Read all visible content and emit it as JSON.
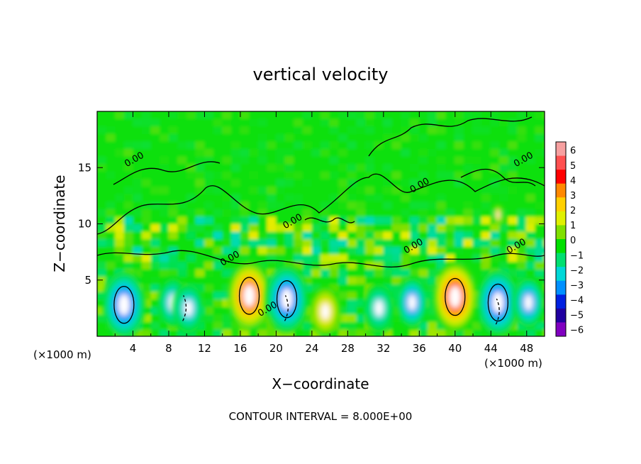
{
  "chart_data": {
    "type": "heatmap",
    "title": "vertical velocity",
    "xlabel": "X−coordinate",
    "ylabel": "Z−coordinate",
    "x_unit_left": "(×1000 m)",
    "x_unit_right": "(×1000 m)",
    "footer": "CONTOUR INTERVAL = 8.000E+00",
    "xlim": [
      0,
      50
    ],
    "ylim": [
      0,
      20
    ],
    "x_ticks": [
      "4",
      "8",
      "12",
      "16",
      "20",
      "24",
      "28",
      "32",
      "36",
      "40",
      "44",
      "48"
    ],
    "x_tick_values": [
      4,
      8,
      12,
      16,
      20,
      24,
      28,
      32,
      36,
      40,
      44,
      48
    ],
    "y_ticks": [
      "5",
      "10",
      "15"
    ],
    "y_tick_values": [
      5,
      10,
      15
    ],
    "colorbar": {
      "labels": [
        "6",
        "5",
        "4",
        "3",
        "2",
        "1",
        "0",
        "−1",
        "−2",
        "−3",
        "−4",
        "−5",
        "−6"
      ],
      "colors": [
        "#f7a0a0",
        "#ff5050",
        "#ff0000",
        "#ff8800",
        "#ffd000",
        "#e0f000",
        "#80e000",
        "#00e000",
        "#00e070",
        "#00d8d8",
        "#0090ff",
        "#0020e0",
        "#2000a0",
        "#8000c0"
      ]
    },
    "contour_labels": [
      {
        "text": "0.00",
        "x": 4.3,
        "z": 15.5
      },
      {
        "text": "0.00",
        "x": 15.0,
        "z": 6.7
      },
      {
        "text": "0.00",
        "x": 19.2,
        "z": 2.2
      },
      {
        "text": "0.00",
        "x": 22.0,
        "z": 10.0
      },
      {
        "text": "0.00",
        "x": 35.5,
        "z": 7.8
      },
      {
        "text": "0.00",
        "x": 36.2,
        "z": 13.2
      },
      {
        "text": "0.00",
        "x": 47.0,
        "z": 7.8
      },
      {
        "text": "0.00",
        "x": 47.8,
        "z": 15.5
      }
    ],
    "features": [
      {
        "x": 3.0,
        "z": 2.8,
        "w": -6
      },
      {
        "x": 8.5,
        "z": 3.0,
        "w": -4.5
      },
      {
        "x": 10.2,
        "z": 2.5,
        "w": -4.5
      },
      {
        "x": 17.0,
        "z": 3.6,
        "w": 6
      },
      {
        "x": 21.2,
        "z": 3.3,
        "w": -6
      },
      {
        "x": 25.5,
        "z": 2.2,
        "w": 4
      },
      {
        "x": 31.5,
        "z": 2.5,
        "w": -4
      },
      {
        "x": 35.2,
        "z": 3.0,
        "w": -5.5
      },
      {
        "x": 40.0,
        "z": 3.5,
        "w": 6.5
      },
      {
        "x": 44.8,
        "z": 3.0,
        "w": -6
      },
      {
        "x": 48.2,
        "z": 3.0,
        "w": -5.5
      },
      {
        "x": 44.8,
        "z": 10.8,
        "w": 5
      }
    ]
  }
}
